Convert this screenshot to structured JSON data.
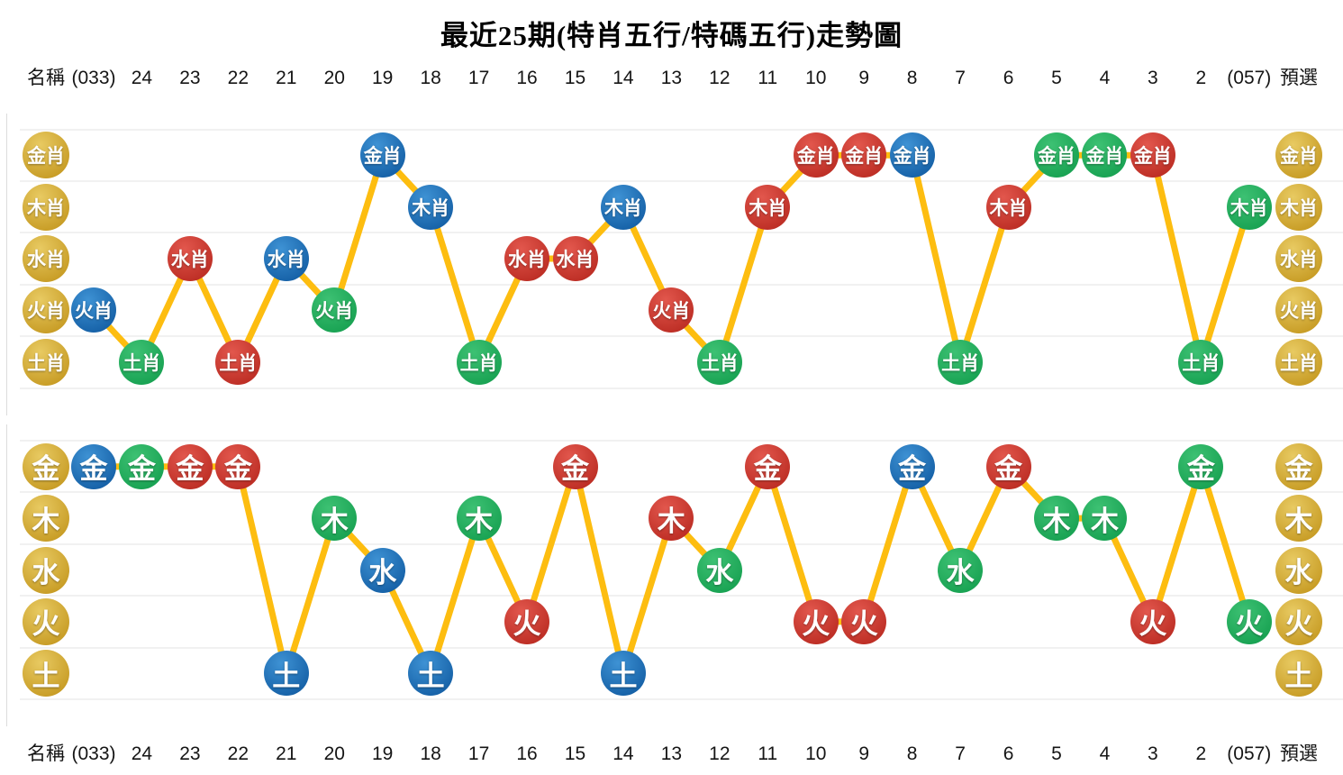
{
  "title": "最近25期(特肖五行/特碼五行)走勢圖",
  "columns": [
    "名稱",
    "(033)",
    "24",
    "23",
    "22",
    "21",
    "20",
    "19",
    "18",
    "17",
    "16",
    "15",
    "14",
    "13",
    "12",
    "11",
    "10",
    "9",
    "8",
    "7",
    "6",
    "5",
    "4",
    "3",
    "2",
    "(057)",
    "預選"
  ],
  "colors": {
    "line": "#fdbd10",
    "gridline": "#f1f1f1",
    "text_on_circle": "#ffffff",
    "title_text": "#000000",
    "header_text": "#151515"
  },
  "palette": {
    "blue": {
      "light": "#3e92d4",
      "dark": "#0b549b"
    },
    "green": {
      "light": "#3dc173",
      "dark": "#0f9a4a"
    },
    "red": {
      "light": "#e2574d",
      "dark": "#b3231a"
    },
    "gold": {
      "light": "#e8ca62",
      "dark": "#bf9015"
    }
  },
  "chart_data": [
    {
      "type": "line",
      "name": "特肖五行",
      "rows": [
        "金肖",
        "木肖",
        "水肖",
        "火肖",
        "土肖"
      ],
      "points": [
        {
          "column": "(033)",
          "value": "火肖",
          "color": "blue"
        },
        {
          "column": "24",
          "value": "土肖",
          "color": "green"
        },
        {
          "column": "23",
          "value": "水肖",
          "color": "red"
        },
        {
          "column": "22",
          "value": "土肖",
          "color": "red"
        },
        {
          "column": "21",
          "value": "水肖",
          "color": "blue"
        },
        {
          "column": "20",
          "value": "火肖",
          "color": "green"
        },
        {
          "column": "19",
          "value": "金肖",
          "color": "blue"
        },
        {
          "column": "18",
          "value": "木肖",
          "color": "blue"
        },
        {
          "column": "17",
          "value": "土肖",
          "color": "green"
        },
        {
          "column": "16",
          "value": "水肖",
          "color": "red"
        },
        {
          "column": "15",
          "value": "水肖",
          "color": "red"
        },
        {
          "column": "14",
          "value": "木肖",
          "color": "blue"
        },
        {
          "column": "13",
          "value": "火肖",
          "color": "red"
        },
        {
          "column": "12",
          "value": "土肖",
          "color": "green"
        },
        {
          "column": "11",
          "value": "木肖",
          "color": "red"
        },
        {
          "column": "10",
          "value": "金肖",
          "color": "red"
        },
        {
          "column": "9",
          "value": "金肖",
          "color": "red"
        },
        {
          "column": "8",
          "value": "金肖",
          "color": "blue"
        },
        {
          "column": "7",
          "value": "土肖",
          "color": "green"
        },
        {
          "column": "6",
          "value": "木肖",
          "color": "red"
        },
        {
          "column": "5",
          "value": "金肖",
          "color": "green"
        },
        {
          "column": "4",
          "value": "金肖",
          "color": "green"
        },
        {
          "column": "3",
          "value": "金肖",
          "color": "red"
        },
        {
          "column": "2",
          "value": "土肖",
          "color": "green"
        },
        {
          "column": "(057)",
          "value": "木肖",
          "color": "green"
        }
      ]
    },
    {
      "type": "line",
      "name": "特碼五行",
      "rows": [
        "金",
        "木",
        "水",
        "火",
        "土"
      ],
      "points": [
        {
          "column": "(033)",
          "value": "金",
          "color": "blue"
        },
        {
          "column": "24",
          "value": "金",
          "color": "green"
        },
        {
          "column": "23",
          "value": "金",
          "color": "red"
        },
        {
          "column": "22",
          "value": "金",
          "color": "red"
        },
        {
          "column": "21",
          "value": "土",
          "color": "blue"
        },
        {
          "column": "20",
          "value": "木",
          "color": "green"
        },
        {
          "column": "19",
          "value": "水",
          "color": "blue"
        },
        {
          "column": "18",
          "value": "土",
          "color": "blue"
        },
        {
          "column": "17",
          "value": "木",
          "color": "green"
        },
        {
          "column": "16",
          "value": "火",
          "color": "red"
        },
        {
          "column": "15",
          "value": "金",
          "color": "red"
        },
        {
          "column": "14",
          "value": "土",
          "color": "blue"
        },
        {
          "column": "13",
          "value": "木",
          "color": "red"
        },
        {
          "column": "12",
          "value": "水",
          "color": "green"
        },
        {
          "column": "11",
          "value": "金",
          "color": "red"
        },
        {
          "column": "10",
          "value": "火",
          "color": "red"
        },
        {
          "column": "9",
          "value": "火",
          "color": "red"
        },
        {
          "column": "8",
          "value": "金",
          "color": "blue"
        },
        {
          "column": "7",
          "value": "水",
          "color": "green"
        },
        {
          "column": "6",
          "value": "金",
          "color": "red"
        },
        {
          "column": "5",
          "value": "木",
          "color": "green"
        },
        {
          "column": "4",
          "value": "木",
          "color": "green"
        },
        {
          "column": "3",
          "value": "火",
          "color": "red"
        },
        {
          "column": "2",
          "value": "金",
          "color": "green"
        },
        {
          "column": "(057)",
          "value": "火",
          "color": "green"
        }
      ]
    }
  ]
}
